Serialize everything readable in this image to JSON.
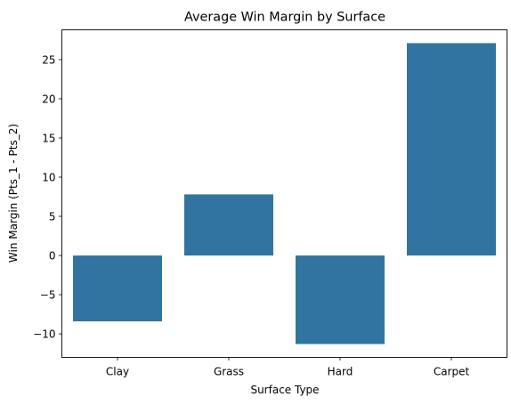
{
  "chart_data": {
    "type": "bar",
    "title": "Average Win Margin by Surface",
    "xlabel": "Surface Type",
    "ylabel": "Win Margin (Pts_1 - Pts_2)",
    "categories": [
      "Clay",
      "Grass",
      "Hard",
      "Carpet"
    ],
    "values": [
      -8.4,
      7.8,
      -11.3,
      27.1
    ],
    "ylim": [
      -13.0,
      28.8
    ],
    "yticks": [
      -10,
      -5,
      0,
      5,
      10,
      15,
      20,
      25
    ],
    "bar_color": "#3274a1",
    "grid": false,
    "legend": "none"
  }
}
